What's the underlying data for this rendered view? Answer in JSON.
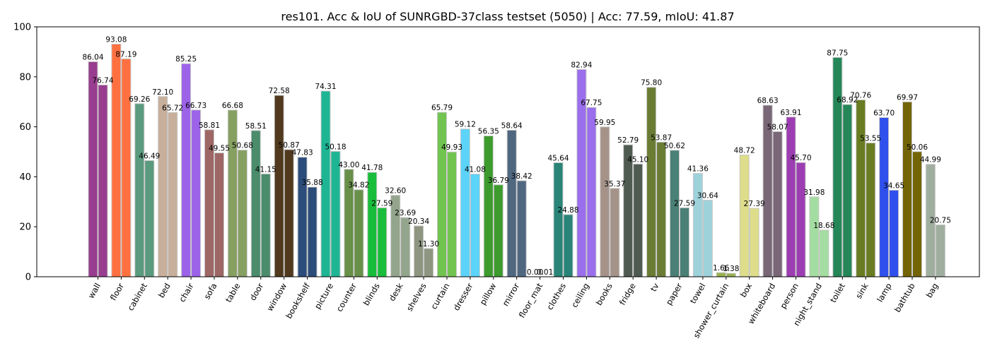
{
  "chart_data": {
    "type": "bar",
    "title": "res101. Acc & IoU of SUNRGBD-37class testset (5050) | Acc: 77.59, mIoU: 41.87",
    "xlabel": "",
    "ylabel": "",
    "ylim": [
      0,
      100
    ],
    "yticks": [
      0,
      20,
      40,
      60,
      80,
      100
    ],
    "grid": false,
    "categories": [
      "wall",
      "floor",
      "cabinet",
      "bed",
      "chair",
      "sofa",
      "table",
      "door",
      "window",
      "bookshelf",
      "picture",
      "counter",
      "blinds",
      "desk",
      "shelves",
      "curtain",
      "dresser",
      "pillow",
      "mirror",
      "floor_mat",
      "clothes",
      "ceiling",
      "books",
      "fridge",
      "tv",
      "paper",
      "towel",
      "shower_curtain",
      "box",
      "whiteboard",
      "person",
      "night_stand",
      "toilet",
      "sink",
      "lamp",
      "bathtub",
      "bag"
    ],
    "colors": [
      "#983d8f",
      "#ff7040",
      "#5a9a7e",
      "#c8af9b",
      "#9c63e8",
      "#9e6765",
      "#86a061",
      "#4a8c6c",
      "#51391e",
      "#2c4c7a",
      "#1eb594",
      "#689049",
      "#19bd3c",
      "#93a58c",
      "#8e9580",
      "#72c450",
      "#5cd3f9",
      "#3c9b2c",
      "#506780",
      "#2d7ac8",
      "#2a8478",
      "#9a6eec",
      "#a59389",
      "#4f5a50",
      "#6a7c34",
      "#4a8075",
      "#9ed2db",
      "#98b34e",
      "#dddd8b",
      "#796677",
      "#9d3db2",
      "#a4dda1",
      "#258758",
      "#6a7c22",
      "#3050ed",
      "#736506",
      "#a0aea0"
    ],
    "series": [
      {
        "values": [
          86.04,
          93.08,
          69.26,
          72.1,
          85.25,
          58.81,
          66.68,
          58.51,
          72.58,
          47.83,
          74.31,
          43.0,
          41.78,
          32.6,
          20.34,
          65.79,
          59.12,
          56.35,
          58.64,
          0.0,
          45.64,
          82.94,
          59.95,
          52.79,
          75.8,
          50.62,
          41.36,
          1.66,
          48.72,
          68.63,
          63.91,
          31.98,
          87.75,
          70.76,
          63.7,
          69.97,
          44.99
        ]
      },
      {
        "values": [
          76.74,
          87.19,
          46.49,
          65.72,
          66.73,
          49.55,
          50.68,
          41.15,
          50.87,
          35.88,
          50.18,
          34.82,
          27.59,
          23.69,
          11.3,
          49.93,
          41.08,
          36.79,
          38.42,
          0.01,
          24.88,
          67.75,
          35.37,
          45.1,
          53.87,
          27.59,
          30.64,
          1.38,
          27.39,
          58.07,
          45.7,
          18.68,
          68.92,
          53.55,
          34.65,
          50.06,
          20.75
        ]
      }
    ],
    "labels": [
      [
        "86.04",
        "93.08",
        "69.26",
        "72.10",
        "85.25",
        "58.81",
        "66.68",
        "58.51",
        "72.58",
        "47.83",
        "74.31",
        "43.00",
        "41.78",
        "32.60",
        "20.34",
        "65.79",
        "59.12",
        "56.35",
        "58.64",
        "0.00",
        "45.64",
        "82.94",
        "59.95",
        "52.79",
        "75.80",
        "50.62",
        "41.36",
        "1.66",
        "48.72",
        "68.63",
        "63.91",
        "31.98",
        "87.75",
        "70.76",
        "63.70",
        "69.97",
        "44.99"
      ],
      [
        "76.74",
        "87.19",
        "46.49",
        "65.72",
        "66.73",
        "49.55",
        "50.68",
        "41.15",
        "50.87",
        "35.88",
        "50.18",
        "34.82",
        "27.59",
        "23.69",
        "11.30",
        "49.93",
        "41.08",
        "36.79",
        "38.42",
        "0.01",
        "24.88",
        "67.75",
        "35.37",
        "45.10",
        "53.87",
        "27.59",
        "30.64",
        "1.38",
        "27.39",
        "58.07",
        "45.70",
        "18.68",
        "68.92",
        "53.55",
        "34.65",
        "50.06",
        "20.75"
      ]
    ]
  }
}
